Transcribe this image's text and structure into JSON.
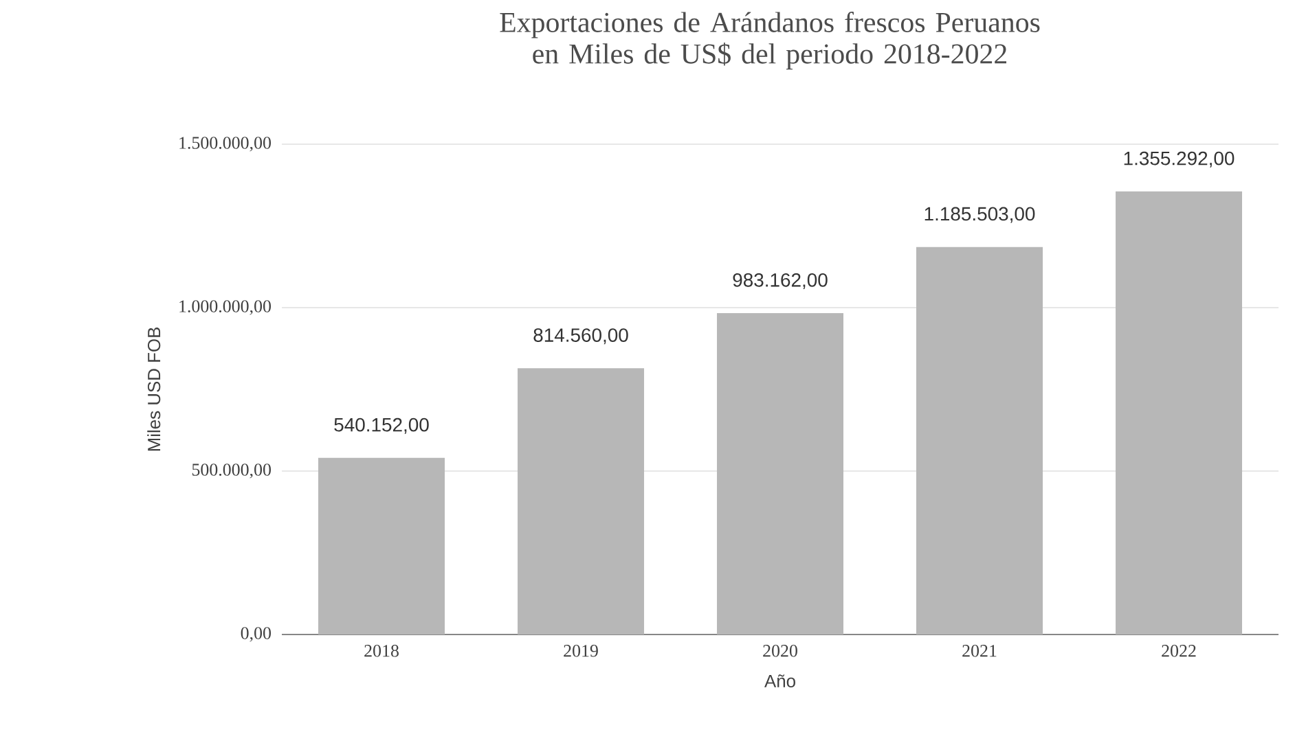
{
  "chart_data": {
    "type": "bar",
    "title": "Exportaciones de Arándanos frescos Peruanos en Miles de US$ del periodo 2018-2022",
    "xlabel": "Año",
    "ylabel": "Miles USD FOB",
    "categories": [
      "2018",
      "2019",
      "2020",
      "2021",
      "2022"
    ],
    "values": [
      540152,
      814560,
      983162,
      1185503,
      1355292
    ],
    "value_labels": [
      "540.152,00",
      "814.560,00",
      "983.162,00",
      "1.185.503,00",
      "1.355.292,00"
    ],
    "color": "#b7b7b7",
    "ylim": [
      0,
      1500000
    ],
    "yticks": [
      {
        "value": 0,
        "label": "0,00"
      },
      {
        "value": 500000,
        "label": "500.000,00"
      },
      {
        "value": 1000000,
        "label": "1.000.000,00"
      },
      {
        "value": 1500000,
        "label": "1.500.000,00"
      }
    ],
    "grid": "y"
  }
}
